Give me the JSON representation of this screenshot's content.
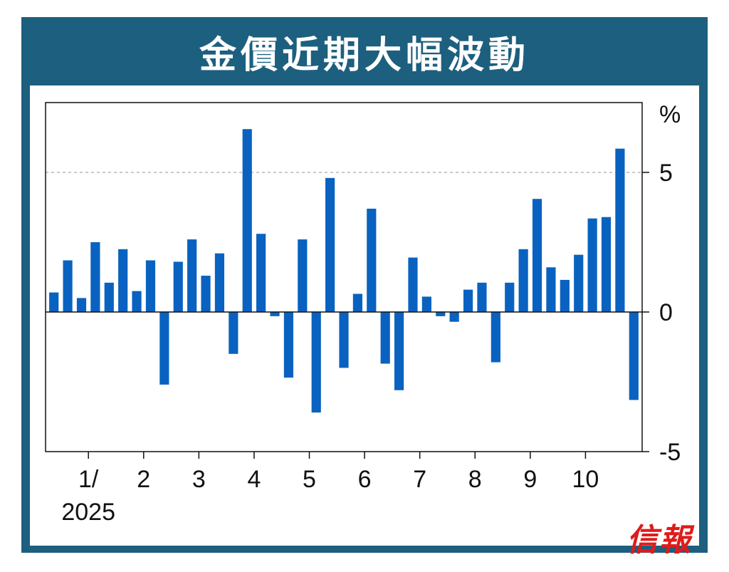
{
  "title": "金價近期大幅波動",
  "logo_text": "信報",
  "colors": {
    "frame": "#1d5f7e",
    "bar": "#0a62c0",
    "title_text": "#ffffff",
    "logo": "#e01b1b"
  },
  "chart_data": {
    "type": "bar",
    "unit": "%",
    "ylim": [
      -5,
      7.5
    ],
    "yticks": [
      5,
      0,
      -5
    ],
    "y_axis_side": "right",
    "dashed_reference_line": 5,
    "x_month_labels": [
      {
        "label": "1/",
        "sub": "2025",
        "after_bar": 3
      },
      {
        "label": "2",
        "after_bar": 7
      },
      {
        "label": "3",
        "after_bar": 11
      },
      {
        "label": "4",
        "after_bar": 15
      },
      {
        "label": "5",
        "after_bar": 19
      },
      {
        "label": "6",
        "after_bar": 23
      },
      {
        "label": "7",
        "after_bar": 27
      },
      {
        "label": "8",
        "after_bar": 31
      },
      {
        "label": "9",
        "after_bar": 35
      },
      {
        "label": "10",
        "after_bar": 39
      }
    ],
    "values": [
      0.7,
      1.85,
      0.5,
      2.5,
      1.05,
      2.25,
      0.75,
      1.85,
      -2.6,
      1.8,
      2.6,
      1.3,
      2.1,
      -1.5,
      6.55,
      2.8,
      -0.15,
      -2.35,
      2.6,
      -3.6,
      4.8,
      -2.0,
      0.65,
      3.7,
      -1.85,
      -2.8,
      1.95,
      0.55,
      -0.15,
      -0.35,
      0.8,
      1.05,
      -1.8,
      1.05,
      2.25,
      4.05,
      1.6,
      1.15,
      2.05,
      3.35,
      3.4,
      5.85,
      -3.15
    ]
  }
}
